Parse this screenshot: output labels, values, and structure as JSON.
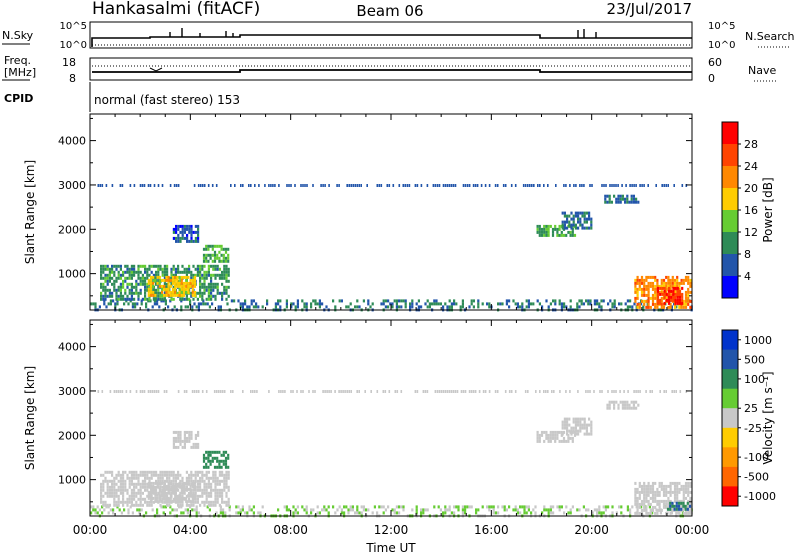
{
  "header": {
    "station": "Hankasalmi (fitACF)",
    "beam": "Beam 06",
    "date": "23/Jul/2017"
  },
  "strips": {
    "nsky_label": "N.Sky",
    "nsky_ticks": [
      "10^5",
      "10^0"
    ],
    "nsearch_label": "N.Search",
    "nsearch_ticks": [
      "10^5",
      "10^0"
    ],
    "freq_label_1": "Freq.",
    "freq_label_2": "[MHz]",
    "freq_ticks": [
      "18",
      "8"
    ],
    "nave_label": "Nave",
    "nave_ticks": [
      "60",
      "0"
    ],
    "cpid_label": "CPID",
    "cpid_text": "normal (fast stereo) 153"
  },
  "chart_data": [
    {
      "type": "heatmap",
      "title": "",
      "xlabel": "Time UT",
      "ylabel": "Slant Range [km]",
      "x_ticks": [
        "00:00",
        "04:00",
        "08:00",
        "12:00",
        "16:00",
        "20:00",
        "00:00"
      ],
      "xlim": [
        0,
        24
      ],
      "ylim": [
        180,
        4600
      ],
      "y_ticks": [
        1000,
        2000,
        3000,
        4000
      ],
      "colorbar_label": "Power [dB]",
      "colorbar_ticks": [
        "4",
        "8",
        "12",
        "16",
        "20",
        "24",
        "28"
      ],
      "colorbar_colors": [
        "#0000ff",
        "#2255aa",
        "#2e8b57",
        "#66cc33",
        "#ffcc00",
        "#ff8800",
        "#ff4400",
        "#ff0000"
      ],
      "regions": [
        {
          "t0": 0.0,
          "t1": 24.0,
          "r0": 200,
          "r1": 420,
          "v": 8
        },
        {
          "t0": 0.4,
          "t1": 5.5,
          "r0": 420,
          "r1": 1200,
          "v": 10
        },
        {
          "t0": 2.3,
          "t1": 4.2,
          "r0": 520,
          "r1": 950,
          "v": 18
        },
        {
          "t0": 3.3,
          "t1": 4.3,
          "r0": 1700,
          "r1": 2100,
          "v": 6
        },
        {
          "t0": 4.5,
          "t1": 5.5,
          "r0": 1250,
          "r1": 1650,
          "v": 12
        },
        {
          "t0": 17.8,
          "t1": 19.3,
          "r0": 1850,
          "r1": 2100,
          "v": 12
        },
        {
          "t0": 18.8,
          "t1": 20.0,
          "r0": 2050,
          "r1": 2400,
          "v": 7
        },
        {
          "t0": 20.5,
          "t1": 21.9,
          "r0": 2600,
          "r1": 2780,
          "v": 7
        },
        {
          "t0": 21.7,
          "t1": 23.9,
          "r0": 250,
          "r1": 950,
          "v": 22
        },
        {
          "t0": 22.6,
          "t1": 23.6,
          "r0": 300,
          "r1": 700,
          "v": 29
        }
      ]
    },
    {
      "type": "heatmap",
      "title": "",
      "xlabel": "Time UT",
      "ylabel": "Slant Range [km]",
      "x_ticks": [
        "00:00",
        "04:00",
        "08:00",
        "12:00",
        "16:00",
        "20:00",
        "00:00"
      ],
      "xlim": [
        0,
        24
      ],
      "ylim": [
        180,
        4600
      ],
      "y_ticks": [
        1000,
        2000,
        3000,
        4000
      ],
      "colorbar_label": "Velocity [m s⁻¹]",
      "colorbar_ticks": [
        "1000",
        "500",
        "100",
        "25",
        "-25",
        "-100",
        "-500",
        "-1000"
      ],
      "colorbar_colors": [
        "#0033cc",
        "#2255aa",
        "#2e8b57",
        "#66cc33",
        "#c8c8c8",
        "#ffcc00",
        "#ff9900",
        "#ff6600",
        "#ff0000"
      ],
      "regions": [
        {
          "t0": 0.0,
          "t1": 24.0,
          "r0": 200,
          "r1": 420,
          "v": 25
        },
        {
          "t0": 0.4,
          "t1": 5.5,
          "r0": 420,
          "r1": 1200,
          "v": 0
        },
        {
          "t0": 2.3,
          "t1": 4.2,
          "r0": 520,
          "r1": 950,
          "v": 0
        },
        {
          "t0": 3.3,
          "t1": 4.3,
          "r0": 1700,
          "r1": 2100,
          "v": 0
        },
        {
          "t0": 4.5,
          "t1": 5.5,
          "r0": 1250,
          "r1": 1650,
          "v": 80
        },
        {
          "t0": 17.8,
          "t1": 19.3,
          "r0": 1850,
          "r1": 2100,
          "v": 0
        },
        {
          "t0": 18.8,
          "t1": 20.0,
          "r0": 2050,
          "r1": 2400,
          "v": 0
        },
        {
          "t0": 20.5,
          "t1": 21.9,
          "r0": 2600,
          "r1": 2780,
          "v": 0
        },
        {
          "t0": 21.7,
          "t1": 23.9,
          "r0": 250,
          "r1": 950,
          "v": 10
        },
        {
          "t0": 23.0,
          "t1": 23.9,
          "r0": 300,
          "r1": 500,
          "v": 300
        }
      ]
    }
  ]
}
